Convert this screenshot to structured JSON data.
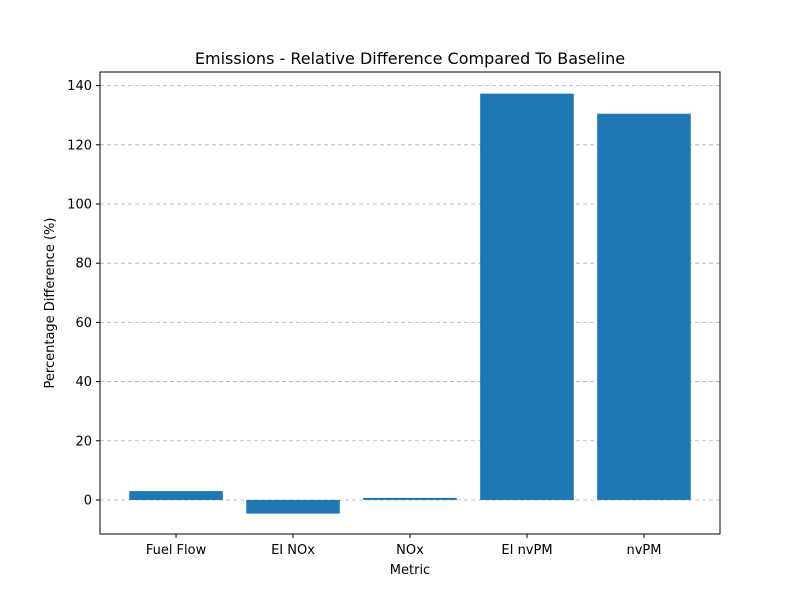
{
  "chart_data": {
    "type": "bar",
    "title": "Emissions - Relative Difference Compared To Baseline",
    "xlabel": "Metric",
    "ylabel": "Percentage Difference (%)",
    "categories": [
      "Fuel Flow",
      "EI NOx",
      "NOx",
      "EI nvPM",
      "nvPM"
    ],
    "values": [
      3.0,
      -4.6,
      0.7,
      137.3,
      130.5
    ],
    "ylim": [
      -11.5,
      144.6
    ],
    "yticks": [
      0,
      20,
      40,
      60,
      80,
      100,
      120,
      140
    ],
    "grid": "y-axis dashed",
    "colors": {
      "bar": "#1f77b4",
      "grid": "#b0b0b0",
      "axis": "#000000"
    }
  }
}
